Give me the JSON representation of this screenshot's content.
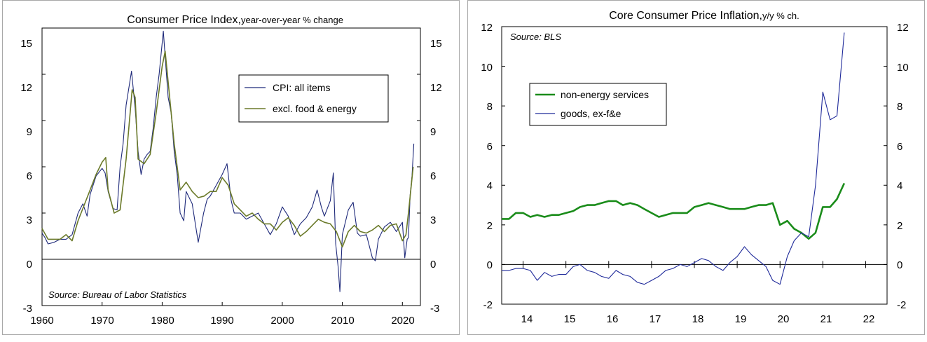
{
  "charts": [
    {
      "title": "Consumer Price Index,",
      "subtitle": " year-over-year % change",
      "source": "Source: Bureau of Labor Statistics",
      "y_ticks": [
        "15",
        "12",
        "9",
        "6",
        "3",
        "0",
        "-3"
      ],
      "x_ticks": [
        "1960",
        "1970",
        "1980",
        "1990",
        "2000",
        "2010",
        "2020"
      ],
      "legend": [
        "CPI: all items",
        "excl. food & energy"
      ]
    },
    {
      "title": "Core Consumer Price Inflation,",
      "subtitle": " y/y % ch.",
      "source": "Source: BLS",
      "y_ticks": [
        "12",
        "10",
        "8",
        "6",
        "4",
        "2",
        "0",
        "-2"
      ],
      "x_ticks": [
        "14",
        "15",
        "16",
        "17",
        "18",
        "19",
        "20",
        "21",
        "22"
      ],
      "legend": [
        "non-energy services",
        "goods, ex-f&e"
      ]
    }
  ],
  "chart_data": [
    {
      "type": "line",
      "title": "Consumer Price Index, year-over-year % change",
      "ylim": [
        -3,
        15
      ],
      "xlim": [
        1960,
        2023
      ],
      "grid": false,
      "legend_position": "upper-right",
      "colors": {
        "cpi": "#1f2a7a",
        "core": "#6b7a2a"
      },
      "series": [
        {
          "name": "CPI: all items",
          "x": [
            1960,
            1960.5,
            1961,
            1962,
            1963,
            1964,
            1965,
            1966,
            1966.8,
            1967.5,
            1968,
            1969,
            1970,
            1970.5,
            1971,
            1971.8,
            1972.5,
            1973,
            1973.5,
            1974,
            1974.9,
            1975.5,
            1976,
            1976.5,
            1977,
            1977.5,
            1978,
            1978.5,
            1979,
            1979.5,
            1980.2,
            1980.6,
            1981,
            1981.5,
            1982,
            1982.5,
            1983,
            1983.6,
            1984,
            1985,
            1986,
            1986.9,
            1987.5,
            1988,
            1989,
            1990,
            1990.8,
            1991.5,
            1992,
            1993,
            1994,
            1995,
            1996,
            1997,
            1998,
            1999,
            2000,
            2001,
            2002,
            2003,
            2004,
            2005,
            2005.8,
            2006.5,
            2007,
            2008,
            2008.5,
            2008.9,
            2009.3,
            2009.6,
            2010,
            2011,
            2011.8,
            2012.5,
            2013,
            2014,
            2015,
            2015.5,
            2016,
            2017,
            2018,
            2019,
            2020,
            2020.4,
            2020.8,
            2021,
            2021.3,
            2021.6,
            2021.9
          ],
          "values": [
            1.7,
            1.4,
            1.0,
            1.1,
            1.3,
            1.3,
            1.6,
            3.0,
            3.6,
            2.8,
            4.2,
            5.4,
            5.9,
            5.6,
            4.4,
            3.3,
            3.2,
            6.0,
            7.5,
            10.0,
            12.2,
            9.8,
            7.0,
            5.5,
            6.5,
            6.8,
            7.0,
            8.5,
            10.5,
            12.0,
            14.8,
            12.6,
            10.5,
            9.5,
            7.0,
            5.5,
            3.0,
            2.5,
            4.4,
            3.6,
            1.1,
            3.0,
            3.9,
            4.1,
            4.8,
            5.5,
            6.2,
            3.8,
            3.0,
            3.0,
            2.6,
            2.8,
            3.0,
            2.3,
            1.6,
            2.3,
            3.4,
            2.8,
            1.6,
            2.3,
            2.7,
            3.4,
            4.5,
            3.4,
            2.8,
            3.8,
            5.6,
            1.0,
            -0.5,
            -2.1,
            1.6,
            3.2,
            3.7,
            1.7,
            1.5,
            1.6,
            0.1,
            -0.1,
            1.3,
            2.1,
            2.4,
            1.8,
            2.4,
            0.1,
            1.3,
            1.4,
            4.2,
            5.4,
            7.5
          ]
        },
        {
          "name": "excl. food & energy",
          "x": [
            1960,
            1961,
            1962,
            1963,
            1964,
            1965,
            1966,
            1967,
            1968,
            1969,
            1970,
            1970.6,
            1971,
            1972,
            1973,
            1974,
            1975,
            1975.5,
            1976,
            1977,
            1978,
            1979,
            1980,
            1980.5,
            1981,
            1982,
            1983,
            1984,
            1985,
            1986,
            1987,
            1988,
            1989,
            1990,
            1991,
            1992,
            1993,
            1994,
            1995,
            1996,
            1997,
            1998,
            1999,
            2000,
            2001,
            2002,
            2003,
            2004,
            2005,
            2006,
            2007,
            2008,
            2009,
            2010,
            2011,
            2012,
            2013,
            2014,
            2015,
            2016,
            2017,
            2018,
            2019,
            2020,
            2020.6,
            2021,
            2021.4,
            2021.8
          ],
          "values": [
            2.0,
            1.3,
            1.3,
            1.3,
            1.6,
            1.2,
            2.5,
            3.5,
            4.5,
            5.5,
            6.3,
            6.6,
            4.5,
            3.0,
            3.2,
            6.5,
            11.0,
            10.5,
            6.5,
            6.2,
            6.8,
            9.5,
            12.5,
            13.5,
            11.5,
            7.5,
            4.5,
            5.0,
            4.4,
            4.0,
            4.1,
            4.4,
            4.4,
            5.3,
            4.8,
            3.6,
            3.2,
            2.8,
            3.0,
            2.6,
            2.3,
            2.3,
            1.9,
            2.4,
            2.7,
            2.2,
            1.5,
            1.8,
            2.2,
            2.6,
            2.4,
            2.3,
            1.8,
            0.8,
            1.8,
            2.2,
            1.8,
            1.7,
            1.9,
            2.2,
            1.8,
            2.2,
            2.3,
            1.2,
            1.6,
            3.0,
            4.5,
            6.0
          ]
        }
      ]
    },
    {
      "type": "line",
      "title": "Core Consumer Price Inflation, y/y % ch.",
      "ylim": [
        -2,
        12
      ],
      "xlim": [
        2013.5,
        2022.5
      ],
      "grid": false,
      "legend_position": "upper-left",
      "colors": {
        "services": "#1a8c1a",
        "goods": "#1f2a9a"
      },
      "series": [
        {
          "name": "non-energy services",
          "x": [
            2013.5,
            2013.67,
            2013.83,
            2014.0,
            2014.17,
            2014.33,
            2014.5,
            2014.67,
            2014.83,
            2015.0,
            2015.17,
            2015.33,
            2015.5,
            2015.67,
            2015.83,
            2016.0,
            2016.17,
            2016.33,
            2016.5,
            2016.67,
            2016.83,
            2017.0,
            2017.17,
            2017.33,
            2017.5,
            2017.67,
            2017.83,
            2018.0,
            2018.17,
            2018.33,
            2018.5,
            2018.67,
            2018.83,
            2019.0,
            2019.17,
            2019.33,
            2019.5,
            2019.67,
            2019.83,
            2020.0,
            2020.17,
            2020.33,
            2020.5,
            2020.67,
            2020.83,
            2021.0,
            2021.17,
            2021.33,
            2021.5
          ],
          "values": [
            2.3,
            2.3,
            2.6,
            2.6,
            2.4,
            2.5,
            2.4,
            2.5,
            2.5,
            2.6,
            2.7,
            2.9,
            3.0,
            3.0,
            3.1,
            3.2,
            3.2,
            3.0,
            3.1,
            3.0,
            2.8,
            2.6,
            2.4,
            2.5,
            2.6,
            2.6,
            2.6,
            2.9,
            3.0,
            3.1,
            3.0,
            2.9,
            2.8,
            2.8,
            2.8,
            2.9,
            3.0,
            3.0,
            3.1,
            2.0,
            2.2,
            1.8,
            1.6,
            1.3,
            1.6,
            2.9,
            2.9,
            3.3,
            4.1
          ]
        },
        {
          "name": "goods, ex-f&e",
          "x": [
            2013.5,
            2013.67,
            2013.83,
            2014.0,
            2014.17,
            2014.33,
            2014.5,
            2014.67,
            2014.83,
            2015.0,
            2015.17,
            2015.33,
            2015.5,
            2015.67,
            2015.83,
            2016.0,
            2016.17,
            2016.33,
            2016.5,
            2016.67,
            2016.83,
            2017.0,
            2017.17,
            2017.33,
            2017.5,
            2017.67,
            2017.83,
            2018.0,
            2018.17,
            2018.33,
            2018.5,
            2018.67,
            2018.83,
            2019.0,
            2019.17,
            2019.33,
            2019.5,
            2019.67,
            2019.83,
            2020.0,
            2020.17,
            2020.33,
            2020.5,
            2020.67,
            2020.83,
            2021.0,
            2021.17,
            2021.33,
            2021.5
          ],
          "values": [
            -0.3,
            -0.3,
            -0.2,
            -0.2,
            -0.3,
            -0.8,
            -0.4,
            -0.6,
            -0.5,
            -0.5,
            -0.1,
            0.0,
            -0.3,
            -0.4,
            -0.6,
            -0.7,
            -0.3,
            -0.5,
            -0.6,
            -0.9,
            -1.0,
            -0.8,
            -0.6,
            -0.3,
            -0.2,
            0.0,
            -0.1,
            0.1,
            0.3,
            0.2,
            -0.1,
            -0.3,
            0.1,
            0.4,
            0.9,
            0.5,
            0.2,
            -0.1,
            -0.8,
            -1.0,
            0.4,
            1.2,
            1.6,
            1.4,
            4.0,
            8.7,
            7.3,
            7.5,
            11.7
          ]
        }
      ]
    }
  ]
}
